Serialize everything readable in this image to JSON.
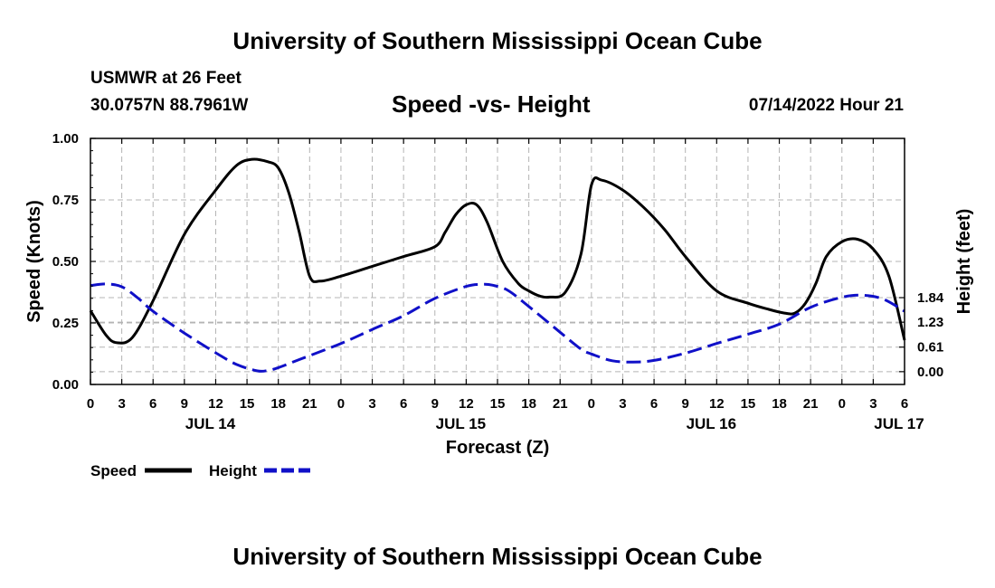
{
  "header": {
    "title": "University of Southern Mississippi Ocean Cube",
    "station": "USMWR at 26 Feet",
    "coordinates": "30.0757N  88.7961W",
    "subtitle": "Speed -vs- Height",
    "datetime": "07/14/2022 Hour 21",
    "footer_title": "University of Southern Mississippi Ocean Cube"
  },
  "colors": {
    "speed": "#000000",
    "height": "#1010c8",
    "grid": "#b4b4b4"
  },
  "chart_data": {
    "type": "line",
    "title": "Speed -vs- Height",
    "xlabel": "Forecast (Z)",
    "ylabel": "Speed (Knots)",
    "y2label": "Height (feet)",
    "x_range_hours": [
      0,
      78
    ],
    "x_ticks": [
      {
        "h": 0,
        "label": "0"
      },
      {
        "h": 3,
        "label": "3"
      },
      {
        "h": 6,
        "label": "6"
      },
      {
        "h": 9,
        "label": "9"
      },
      {
        "h": 12,
        "label": "12"
      },
      {
        "h": 15,
        "label": "15"
      },
      {
        "h": 18,
        "label": "18"
      },
      {
        "h": 21,
        "label": "21"
      },
      {
        "h": 24,
        "label": "0"
      },
      {
        "h": 27,
        "label": "3"
      },
      {
        "h": 30,
        "label": "6"
      },
      {
        "h": 33,
        "label": "9"
      },
      {
        "h": 36,
        "label": "12"
      },
      {
        "h": 39,
        "label": "15"
      },
      {
        "h": 42,
        "label": "18"
      },
      {
        "h": 45,
        "label": "21"
      },
      {
        "h": 48,
        "label": "0"
      },
      {
        "h": 51,
        "label": "3"
      },
      {
        "h": 54,
        "label": "6"
      },
      {
        "h": 57,
        "label": "9"
      },
      {
        "h": 60,
        "label": "12"
      },
      {
        "h": 63,
        "label": "15"
      },
      {
        "h": 66,
        "label": "18"
      },
      {
        "h": 69,
        "label": "21"
      },
      {
        "h": 72,
        "label": "0"
      },
      {
        "h": 75,
        "label": "3"
      },
      {
        "h": 78,
        "label": "6"
      }
    ],
    "day_labels": [
      {
        "h": 12,
        "label": "JUL 14"
      },
      {
        "h": 36,
        "label": "JUL 15"
      },
      {
        "h": 60,
        "label": "JUL 16"
      },
      {
        "h": 78,
        "label": "JUL 17"
      }
    ],
    "ylim": [
      0,
      1
    ],
    "y_ticks": [
      {
        "v": 0,
        "label": "0.00"
      },
      {
        "v": 0.25,
        "label": "0.25"
      },
      {
        "v": 0.5,
        "label": "0.50"
      },
      {
        "v": 0.75,
        "label": "0.75"
      },
      {
        "v": 1.0,
        "label": "1.00"
      }
    ],
    "y2_axis": {
      "map": {
        "zero_at_speed": 0.052,
        "speed_per_foot": 0.1635
      }
    },
    "y2_ticks": [
      {
        "v": 0.0,
        "label": "0.00"
      },
      {
        "v": 0.61,
        "label": "0.61"
      },
      {
        "v": 1.23,
        "label": "1.23"
      },
      {
        "v": 1.84,
        "label": "1.84"
      }
    ],
    "series": [
      {
        "name": "Speed",
        "axis": "left",
        "style": "solid",
        "x": [
          0,
          1.5,
          2.5,
          4,
          6,
          9,
          12,
          14,
          15.5,
          17,
          18,
          19,
          20,
          21,
          22,
          24,
          27,
          30,
          33,
          34,
          35,
          36,
          37,
          38,
          39.5,
          41,
          42,
          43,
          44,
          45.5,
          47,
          48,
          49,
          51,
          53,
          55,
          57,
          60,
          63,
          65,
          66.5,
          67.5,
          68.5,
          69.5,
          70.5,
          72,
          73.5,
          75,
          76.5,
          78
        ],
        "y": [
          0.3,
          0.2,
          0.17,
          0.19,
          0.34,
          0.61,
          0.79,
          0.89,
          0.915,
          0.905,
          0.88,
          0.78,
          0.62,
          0.44,
          0.42,
          0.44,
          0.48,
          0.52,
          0.56,
          0.62,
          0.69,
          0.73,
          0.73,
          0.66,
          0.5,
          0.41,
          0.38,
          0.36,
          0.355,
          0.375,
          0.53,
          0.81,
          0.83,
          0.79,
          0.72,
          0.63,
          0.52,
          0.38,
          0.33,
          0.305,
          0.29,
          0.29,
          0.33,
          0.41,
          0.52,
          0.58,
          0.59,
          0.55,
          0.44,
          0.18
        ]
      },
      {
        "name": "Height",
        "axis": "right",
        "style": "dashed",
        "x": [
          0,
          1.5,
          3,
          4.5,
          6,
          9,
          12,
          14,
          16,
          17,
          18,
          20,
          24,
          27,
          30,
          33,
          36,
          37.5,
          38.5,
          40,
          42,
          45,
          47,
          48,
          50,
          52,
          54,
          57,
          60,
          63,
          66,
          69,
          72,
          74,
          76,
          78
        ],
        "y": [
          2.14,
          2.18,
          2.11,
          1.84,
          1.5,
          0.96,
          0.47,
          0.18,
          0.02,
          0.03,
          0.1,
          0.3,
          0.7,
          1.05,
          1.39,
          1.82,
          2.12,
          2.17,
          2.15,
          2.02,
          1.62,
          0.98,
          0.56,
          0.44,
          0.27,
          0.24,
          0.28,
          0.46,
          0.7,
          0.93,
          1.18,
          1.6,
          1.85,
          1.9,
          1.8,
          1.5
        ]
      }
    ],
    "legend": {
      "position": "bottom-left",
      "entries": [
        "Speed",
        "Height"
      ]
    }
  }
}
